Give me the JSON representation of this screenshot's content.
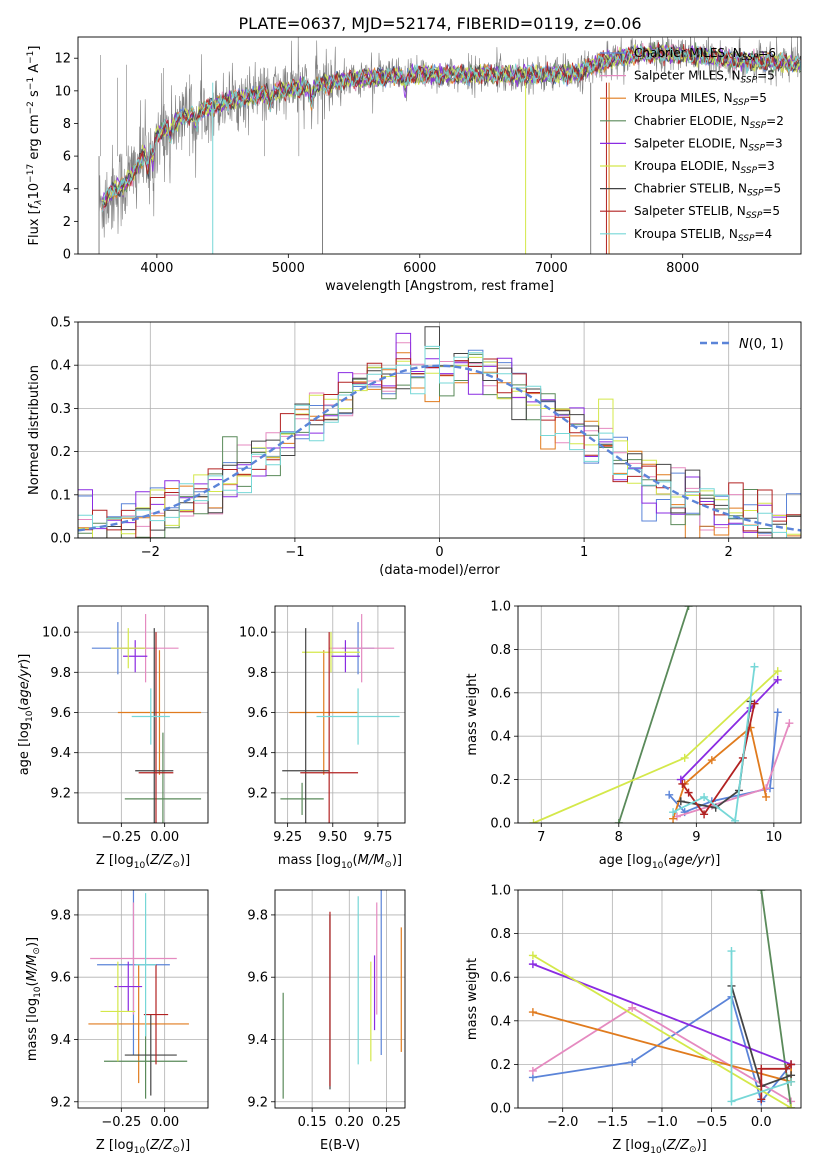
{
  "figure_title": "PLATE=0637, MJD=52174, FIBERID=0119, z=0.06",
  "colors": {
    "chabrier_miles": "#5b84d8",
    "salpeter_miles": "#e58ac0",
    "kroupa_miles": "#e07b1e",
    "chabrier_elodie": "#5a8a5a",
    "salpeter_elodie": "#8a2be2",
    "kroupa_elodie": "#d4e84a",
    "chabrier_stelib": "#444444",
    "salpeter_stelib": "#b22222",
    "kroupa_stelib": "#76d7d7",
    "data": "#808080",
    "normal": "#5b84d8"
  },
  "chart_data": [
    {
      "id": "spectrum",
      "type": "line",
      "title": "PLATE=0637, MJD=52174, FIBERID=0119, z=0.06",
      "xlabel": "wavelength [Angstrom, rest frame]",
      "ylabel": "Flux [f_λ10^-17 erg cm^-2 s^-1 A^-1]",
      "xlim": [
        3400,
        8900
      ],
      "ylim": [
        0,
        13.3
      ],
      "xticks": [
        4000,
        5000,
        6000,
        7000,
        8000
      ],
      "yticks": [
        0,
        2,
        4,
        6,
        8,
        10,
        12
      ],
      "legend_location": "top-right",
      "legend": [
        {
          "label": "Chabrier MILES, N",
          "sub": "SSP",
          "suffix": "=6",
          "color": "#5b84d8"
        },
        {
          "label": "Salpeter MILES, N",
          "sub": "SSP",
          "suffix": "=5",
          "color": "#e58ac0"
        },
        {
          "label": "Kroupa MILES, N",
          "sub": "SSP",
          "suffix": "=5",
          "color": "#e07b1e"
        },
        {
          "label": "Chabrier ELODIE, N",
          "sub": "SSP",
          "suffix": "=2",
          "color": "#5a8a5a"
        },
        {
          "label": "Salpeter ELODIE, N",
          "sub": "SSP",
          "suffix": "=3",
          "color": "#8a2be2"
        },
        {
          "label": "Kroupa ELODIE, N",
          "sub": "SSP",
          "suffix": "=3",
          "color": "#d4e84a"
        },
        {
          "label": "Chabrier STELIB, N",
          "sub": "SSP",
          "suffix": "=5",
          "color": "#444444"
        },
        {
          "label": "Salpeter STELIB, N",
          "sub": "SSP",
          "suffix": "=5",
          "color": "#b22222"
        },
        {
          "label": "Kroupa STELIB, N",
          "sub": "SSP",
          "suffix": "=4",
          "color": "#76d7d7"
        }
      ],
      "continuum": [
        [
          3560,
          2.8
        ],
        [
          3650,
          3.8
        ],
        [
          3750,
          4.2
        ],
        [
          3850,
          5.3
        ],
        [
          3950,
          7.0
        ],
        [
          4050,
          7.6
        ],
        [
          4200,
          8.4
        ],
        [
          4400,
          9.0
        ],
        [
          4600,
          9.5
        ],
        [
          4800,
          9.8
        ],
        [
          5000,
          10.1
        ],
        [
          5200,
          10.3
        ],
        [
          5400,
          10.6
        ],
        [
          5600,
          10.8
        ],
        [
          5800,
          10.9
        ],
        [
          6000,
          11.0
        ],
        [
          6200,
          11.0
        ],
        [
          6400,
          11.0
        ],
        [
          6600,
          11.0
        ],
        [
          6800,
          11.0
        ],
        [
          7000,
          11.0
        ],
        [
          7200,
          11.1
        ],
        [
          7400,
          11.8
        ],
        [
          7600,
          12.2
        ],
        [
          7800,
          12.3
        ],
        [
          8000,
          12.2
        ],
        [
          8200,
          12.1
        ],
        [
          8400,
          11.9
        ],
        [
          8600,
          11.8
        ],
        [
          8800,
          11.7
        ],
        [
          8900,
          11.6
        ]
      ]
    },
    {
      "id": "residual_histogram",
      "type": "step-histogram",
      "xlabel": "(data-model)/error",
      "ylabel": "Normed distribution",
      "xlim": [
        -2.5,
        2.5
      ],
      "ylim": [
        0,
        0.5
      ],
      "xticks": [
        -2,
        -1,
        0,
        1,
        2
      ],
      "yticks": [
        0.0,
        0.1,
        0.2,
        0.3,
        0.4,
        0.5
      ],
      "grid": true,
      "legend_location": "top-right",
      "reference_label": "N(0,1)",
      "bin_width": 0.1
    },
    {
      "id": "age_vs_Z",
      "type": "errorbar",
      "xlabel": "Z [log10(Z/Z⊙)]",
      "ylabel": "age [log10(age/yr)]",
      "xlim": [
        -0.5,
        0.25
      ],
      "ylim": [
        9.05,
        10.13
      ],
      "xticks": [
        -0.25,
        0.0
      ],
      "yticks": [
        9.2,
        9.4,
        9.6,
        9.8,
        10.0
      ],
      "grid": true,
      "points": [
        {
          "x": -0.27,
          "y": 9.92,
          "xerr": 0.15,
          "yerr": 0.13,
          "color": "#5b84d8"
        },
        {
          "x": -0.11,
          "y": 9.92,
          "xerr": 0.19,
          "yerr": 0.17,
          "color": "#e58ac0"
        },
        {
          "x": -0.03,
          "y": 9.6,
          "xerr": 0.24,
          "yerr": 0.31,
          "color": "#e07b1e"
        },
        {
          "x": -0.01,
          "y": 9.17,
          "xerr": 0.22,
          "yerr": 0.33,
          "color": "#5a8a5a"
        },
        {
          "x": -0.17,
          "y": 9.88,
          "xerr": 0.07,
          "yerr": 0.08,
          "color": "#8a2be2"
        },
        {
          "x": -0.21,
          "y": 9.92,
          "xerr": 0.1,
          "yerr": 0.1,
          "color": "#d4e84a"
        },
        {
          "x": -0.06,
          "y": 9.31,
          "xerr": 0.11,
          "yerr": 0.71,
          "color": "#444444"
        },
        {
          "x": -0.05,
          "y": 9.3,
          "xerr": 0.1,
          "yerr": 0.7,
          "color": "#b22222"
        },
        {
          "x": -0.08,
          "y": 9.58,
          "xerr": 0.11,
          "yerr": 0.14,
          "color": "#76d7d7"
        }
      ]
    },
    {
      "id": "age_vs_mass",
      "type": "errorbar",
      "xlabel": "mass [log10(M/M⊙)]",
      "xlim": [
        9.18,
        9.9
      ],
      "ylim": [
        9.05,
        10.13
      ],
      "xticks": [
        9.25,
        9.5,
        9.75
      ],
      "yticks": [
        9.2,
        9.4,
        9.6,
        9.8,
        10.0
      ],
      "grid": true,
      "points": [
        {
          "x": 9.64,
          "y": 9.92,
          "xerr": 0.09,
          "yerr": 0.13,
          "color": "#5b84d8"
        },
        {
          "x": 9.66,
          "y": 9.92,
          "xerr": 0.18,
          "yerr": 0.17,
          "color": "#e58ac0"
        },
        {
          "x": 9.45,
          "y": 9.6,
          "xerr": 0.19,
          "yerr": 0.31,
          "color": "#e07b1e"
        },
        {
          "x": 9.33,
          "y": 9.17,
          "xerr": 0.12,
          "yerr": 0.08,
          "color": "#5a8a5a"
        },
        {
          "x": 9.57,
          "y": 9.88,
          "xerr": 0.08,
          "yerr": 0.08,
          "color": "#8a2be2"
        },
        {
          "x": 9.49,
          "y": 9.9,
          "xerr": 0.16,
          "yerr": 0.1,
          "color": "#d4e84a"
        },
        {
          "x": 9.35,
          "y": 9.31,
          "xerr": 0.13,
          "yerr": 0.71,
          "color": "#444444"
        },
        {
          "x": 9.48,
          "y": 9.3,
          "xerr": 0.16,
          "yerr": 0.7,
          "color": "#b22222"
        },
        {
          "x": 9.64,
          "y": 9.58,
          "xerr": 0.23,
          "yerr": 0.14,
          "color": "#76d7d7"
        }
      ]
    },
    {
      "id": "weight_vs_age",
      "type": "line",
      "xlabel": "age [log10(age/yr)]",
      "ylabel": "mass weight",
      "xlim": [
        6.7,
        10.35
      ],
      "ylim": [
        0,
        1.0
      ],
      "xticks": [
        7,
        8,
        9,
        10
      ],
      "yticks": [
        0.0,
        0.2,
        0.4,
        0.6,
        0.8,
        1.0
      ],
      "grid": true,
      "series": [
        {
          "color": "#5b84d8",
          "x": [
            8.65,
            8.85,
            9.2,
            9.95,
            10.05
          ],
          "y": [
            0.13,
            0.05,
            0.1,
            0.16,
            0.51
          ]
        },
        {
          "color": "#e58ac0",
          "x": [
            8.75,
            9.2,
            9.9,
            10.2
          ],
          "y": [
            0.03,
            0.08,
            0.16,
            0.46
          ]
        },
        {
          "color": "#e07b1e",
          "x": [
            8.7,
            8.85,
            9.2,
            9.7,
            9.9
          ],
          "y": [
            0.02,
            0.18,
            0.29,
            0.44,
            0.12
          ]
        },
        {
          "color": "#5a8a5a",
          "x": [
            8.0,
            8.9
          ],
          "y": [
            0.0,
            1.0
          ]
        },
        {
          "color": "#8a2be2",
          "x": [
            8.8,
            9.7,
            10.05
          ],
          "y": [
            0.2,
            0.53,
            0.66
          ]
        },
        {
          "color": "#d4e84a",
          "x": [
            6.9,
            8.85,
            10.05
          ],
          "y": [
            0.0,
            0.3,
            0.7
          ]
        },
        {
          "color": "#444444",
          "x": [
            8.8,
            9.25,
            9.55,
            9.7
          ],
          "y": [
            0.1,
            0.07,
            0.15,
            0.56
          ]
        },
        {
          "color": "#b22222",
          "x": [
            8.82,
            8.9,
            9.1,
            9.6,
            9.75
          ],
          "y": [
            0.18,
            0.14,
            0.04,
            0.3,
            0.55
          ]
        },
        {
          "color": "#76d7d7",
          "x": [
            8.7,
            9.1,
            9.5,
            9.75
          ],
          "y": [
            0.05,
            0.12,
            0.01,
            0.72
          ]
        }
      ]
    },
    {
      "id": "mass_vs_Z",
      "type": "errorbar",
      "xlabel": "Z [log10(Z/Z⊙)]",
      "ylabel": "mass [log10(M/M⊙)]",
      "xlim": [
        -0.5,
        0.25
      ],
      "ylim": [
        9.18,
        9.88
      ],
      "xticks": [
        -0.25,
        0.0
      ],
      "yticks": [
        9.2,
        9.4,
        9.6,
        9.8
      ],
      "grid": true,
      "points": [
        {
          "x": -0.18,
          "y": 9.64,
          "xerr": 0.21,
          "yerr": 0.29,
          "color": "#5b84d8"
        },
        {
          "x": -0.18,
          "y": 9.66,
          "xerr": 0.25,
          "yerr": 0.18,
          "color": "#e58ac0"
        },
        {
          "x": -0.15,
          "y": 9.45,
          "xerr": 0.29,
          "yerr": 0.19,
          "color": "#e07b1e"
        },
        {
          "x": -0.11,
          "y": 9.33,
          "xerr": 0.24,
          "yerr": 0.12,
          "color": "#5a8a5a"
        },
        {
          "x": -0.21,
          "y": 9.57,
          "xerr": 0.08,
          "yerr": 0.08,
          "color": "#8a2be2"
        },
        {
          "x": -0.27,
          "y": 9.49,
          "xerr": 0.1,
          "yerr": 0.16,
          "color": "#d4e84a"
        },
        {
          "x": -0.08,
          "y": 9.35,
          "xerr": 0.15,
          "yerr": 0.13,
          "color": "#444444"
        },
        {
          "x": -0.05,
          "y": 9.48,
          "xerr": 0.07,
          "yerr": 0.16,
          "color": "#b22222"
        },
        {
          "x": -0.11,
          "y": 9.64,
          "xerr": 0.06,
          "yerr": 0.23,
          "color": "#76d7d7"
        }
      ]
    },
    {
      "id": "mass_vs_ebv",
      "type": "errorbar",
      "xlabel": "E(B-V)",
      "xlim": [
        0.1,
        0.275
      ],
      "ylim": [
        9.18,
        9.88
      ],
      "xticks": [
        0.15,
        0.2,
        0.25
      ],
      "yticks": [
        9.2,
        9.4,
        9.6,
        9.8
      ],
      "grid": true,
      "points": [
        {
          "x": 0.243,
          "y": 9.64,
          "xerr": 0,
          "yerr": 0.29,
          "color": "#5b84d8"
        },
        {
          "x": 0.237,
          "y": 9.66,
          "xerr": 0,
          "yerr": 0.18,
          "color": "#e58ac0"
        },
        {
          "x": 0.27,
          "y": 9.56,
          "xerr": 0,
          "yerr": 0.2,
          "color": "#e07b1e"
        },
        {
          "x": 0.111,
          "y": 9.38,
          "xerr": 0,
          "yerr": 0.17,
          "color": "#5a8a5a"
        },
        {
          "x": 0.234,
          "y": 9.55,
          "xerr": 0,
          "yerr": 0.12,
          "color": "#8a2be2"
        },
        {
          "x": 0.229,
          "y": 9.49,
          "xerr": 0,
          "yerr": 0.16,
          "color": "#d4e84a"
        },
        {
          "x": 0.174,
          "y": 9.52,
          "xerr": 0,
          "yerr": 0.28,
          "color": "#444444"
        },
        {
          "x": 0.174,
          "y": 9.53,
          "xerr": 0,
          "yerr": 0.28,
          "color": "#b22222"
        },
        {
          "x": 0.212,
          "y": 9.59,
          "xerr": 0,
          "yerr": 0.27,
          "color": "#76d7d7"
        }
      ]
    },
    {
      "id": "weight_vs_Z",
      "type": "line",
      "xlabel": "Z [log10(Z/Z⊙)]",
      "ylabel": "mass weight",
      "xlim": [
        -2.45,
        0.4
      ],
      "ylim": [
        0,
        1.0
      ],
      "xticks": [
        -2.0,
        -1.5,
        -1.0,
        -0.5,
        0.0
      ],
      "yticks": [
        0.0,
        0.2,
        0.4,
        0.6,
        0.8,
        1.0
      ],
      "grid": true,
      "series": [
        {
          "color": "#5b84d8",
          "x": [
            -2.3,
            -1.3,
            -0.3,
            0.0,
            0.3
          ],
          "y": [
            0.14,
            0.21,
            0.51,
            0.03,
            0.2
          ]
        },
        {
          "color": "#e58ac0",
          "x": [
            -2.3,
            -1.3,
            0.3
          ],
          "y": [
            0.17,
            0.46,
            0.03
          ]
        },
        {
          "color": "#e07b1e",
          "x": [
            -2.3,
            0.3,
            0.3
          ],
          "y": [
            0.44,
            0.12,
            0.2
          ]
        },
        {
          "color": "#5a8a5a",
          "x": [
            0.0,
            0.3
          ],
          "y": [
            1.0,
            0.0
          ]
        },
        {
          "color": "#8a2be2",
          "x": [
            -2.3,
            0.3
          ],
          "y": [
            0.66,
            0.2
          ]
        },
        {
          "color": "#d4e84a",
          "x": [
            -2.3,
            0.3
          ],
          "y": [
            0.7,
            0.0
          ]
        },
        {
          "color": "#444444",
          "x": [
            -0.3,
            0.0,
            0.3
          ],
          "y": [
            0.56,
            0.1,
            0.15
          ]
        },
        {
          "color": "#b22222",
          "x": [
            0.0,
            0.0,
            0.25,
            0.3
          ],
          "y": [
            0.04,
            0.18,
            0.18,
            0.2
          ]
        },
        {
          "color": "#76d7d7",
          "x": [
            -0.3,
            -0.3,
            0.3
          ],
          "y": [
            0.72,
            0.03,
            0.12
          ]
        }
      ]
    }
  ]
}
